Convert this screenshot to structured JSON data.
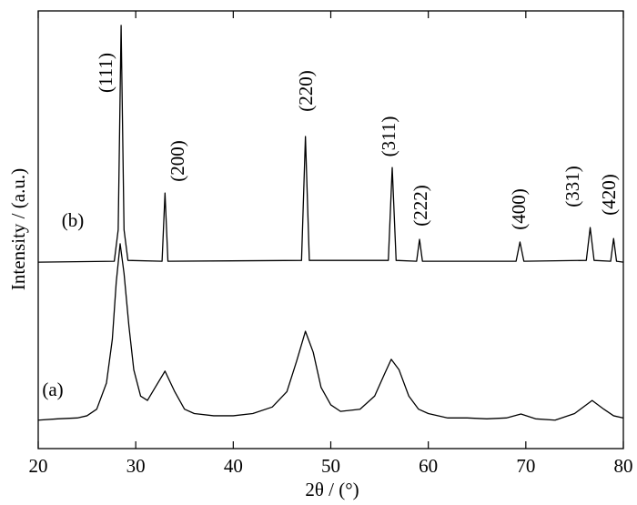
{
  "chart_data": {
    "type": "line",
    "x_label": "2θ / (°)",
    "y_label": "Intensity / (a.u.)",
    "xlim": [
      20,
      80
    ],
    "xticks": [
      20,
      30,
      40,
      50,
      60,
      70,
      80
    ],
    "ylim": [
      0,
      100
    ],
    "color": "#000000",
    "annotations": [
      "(111)",
      "(200)",
      "(220)",
      "(311)",
      "(222)",
      "(400)",
      "(331)",
      "(420)"
    ],
    "series": [
      {
        "name": "(a)",
        "x": [
          20,
          22,
          24,
          25,
          26,
          27,
          27.6,
          28.0,
          28.4,
          28.8,
          29.3,
          29.8,
          30.5,
          31.2,
          32,
          33,
          34,
          35,
          36,
          38,
          40,
          42,
          44,
          45.5,
          46.5,
          47.4,
          48.2,
          49,
          50,
          51,
          53,
          54.5,
          55.5,
          56.2,
          57,
          58,
          59,
          60,
          62,
          64,
          66,
          68,
          69.5,
          71,
          73,
          75,
          76.8,
          78,
          79,
          80
        ],
        "values": [
          6.5,
          6.8,
          7,
          7.5,
          9,
          15,
          25,
          38,
          46.8,
          40,
          28,
          18,
          12,
          11,
          14,
          17.7,
          13,
          9,
          8,
          7.5,
          7.5,
          8,
          9.5,
          13,
          20,
          26.8,
          22,
          14,
          10,
          8.5,
          9,
          12,
          17,
          20.4,
          18,
          12,
          9,
          8,
          7,
          7,
          6.8,
          7,
          7.9,
          6.8,
          6.5,
          8,
          11,
          9,
          7.5,
          7
        ]
      },
      {
        "name": "(b)",
        "x": [
          20,
          27.8,
          28.2,
          28.5,
          28.8,
          29.2,
          32.7,
          33.0,
          33.3,
          47.0,
          47.4,
          47.8,
          55.9,
          56.3,
          56.7,
          58.8,
          59.1,
          59.4,
          69.0,
          69.4,
          69.8,
          76.2,
          76.6,
          77.0,
          78.7,
          79.0,
          79.3,
          80
        ],
        "values": [
          42.6,
          42.8,
          50,
          96.7,
          50,
          43,
          42.8,
          58.4,
          42.8,
          43,
          71.3,
          43,
          43,
          64.2,
          43,
          42.8,
          47.8,
          42.8,
          42.8,
          47.2,
          42.8,
          43,
          50.5,
          43,
          42.8,
          48.0,
          42.8,
          42.6
        ]
      }
    ]
  }
}
